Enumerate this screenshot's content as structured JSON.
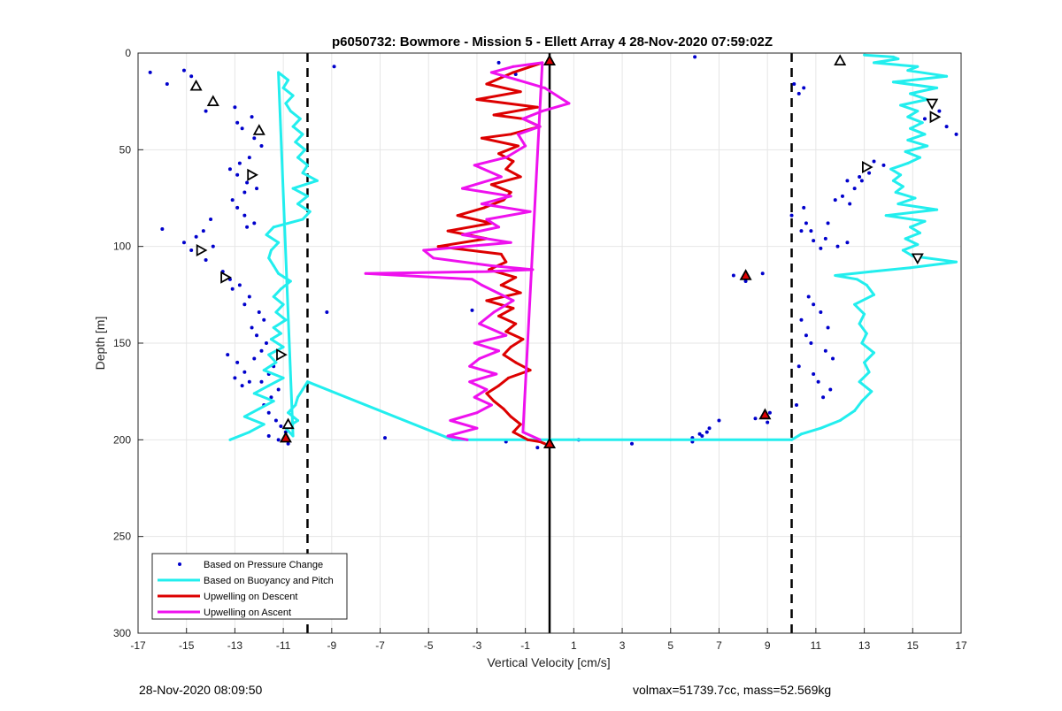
{
  "chart_data": {
    "type": "line",
    "title": "p6050732: Bowmore - Mission 5 - Ellett Array 4 28-Nov-2020 07:59:02Z",
    "xlabel": "Vertical Velocity [cm/s]",
    "ylabel": "Depth [m]",
    "xlim": [
      -17,
      17
    ],
    "ylim": [
      0,
      300
    ],
    "y_reversed": true,
    "xticks": [
      "-17",
      "-15",
      "-13",
      "-11",
      "-9",
      "-7",
      "-5",
      "-3",
      "-1",
      "1",
      "3",
      "5",
      "7",
      "9",
      "11",
      "13",
      "15",
      "17"
    ],
    "yticks": [
      "0",
      "50",
      "100",
      "150",
      "200",
      "250",
      "300"
    ],
    "grid": true,
    "legend_position": "bottom-left",
    "colors": {
      "pressure": "#0000cc",
      "buoyancy": "#22eeee",
      "descent": "#dd0000",
      "ascent": "#ee11ee",
      "reference": "#000000"
    },
    "reference_lines": [
      {
        "x": -10,
        "style": "dashed"
      },
      {
        "x": 0,
        "style": "solid"
      },
      {
        "x": 10,
        "style": "dashed"
      }
    ],
    "series": [
      {
        "name": "Based on Pressure Change",
        "style": "points",
        "x": [
          -16.5,
          -15.8,
          -15.1,
          -14.8,
          -14.2,
          -13.9,
          -13.0,
          -12.3,
          -12.9,
          -12.7,
          -12.2,
          -11.9,
          -12.4,
          -12.8,
          -13.2,
          -12.9,
          -12.5,
          -12.1,
          -12.6,
          -13.1,
          -12.9,
          -12.6,
          -12.2,
          -12.5,
          -14.0,
          -14.3,
          -14.6,
          -15.1,
          -14.8,
          -13.9,
          -14.2,
          -16.0,
          -13.5,
          -13.2,
          -12.8,
          -13.1,
          -12.4,
          -12.6,
          -12.0,
          -11.8,
          -12.3,
          -12.1,
          -11.7,
          -11.9,
          -12.2,
          -11.4,
          -11.6,
          -11.9,
          -11.2,
          -11.5,
          -12.4,
          -12.6,
          -12.9,
          -13.3,
          -13.0,
          -12.7,
          -11.8,
          -11.6,
          -11.3,
          -11.1,
          -10.9,
          -11.6,
          -11.2,
          -10.8,
          -9.2,
          -6.8,
          -1.8,
          -0.5,
          1.2,
          3.4,
          5.9,
          6.3,
          6.6,
          7.0,
          6.0,
          6.5,
          7.6,
          8.1,
          8.8,
          9.1,
          8.5,
          9.0,
          10.1,
          10.5,
          10.3,
          10.7,
          10.9,
          11.2,
          10.4,
          11.5,
          10.6,
          10.8,
          11.4,
          11.7,
          10.3,
          10.9,
          11.1,
          11.6,
          11.3,
          10.2,
          10.5,
          10.0,
          10.6,
          10.8,
          11.4,
          11.9,
          12.3,
          12.1,
          12.4,
          12.6,
          12.9,
          13.4,
          13.8,
          13.2,
          12.8,
          12.3,
          11.8,
          11.5,
          10.4,
          10.9,
          11.2,
          -3.2,
          -8.9,
          5.9,
          6.2,
          -2.1,
          -1.4,
          15.5,
          16.1,
          16.4,
          16.8,
          15.8
        ],
        "y": [
          10,
          16,
          9,
          12,
          30,
          25,
          28,
          33,
          36,
          39,
          44,
          48,
          54,
          57,
          60,
          63,
          67,
          70,
          72,
          76,
          80,
          84,
          88,
          90,
          86,
          92,
          95,
          98,
          102,
          100,
          107,
          91,
          113,
          117,
          120,
          122,
          126,
          130,
          134,
          138,
          142,
          146,
          150,
          154,
          158,
          162,
          166,
          170,
          174,
          178,
          170,
          165,
          160,
          156,
          168,
          172,
          182,
          186,
          190,
          193,
          196,
          198,
          200,
          202,
          134,
          199,
          201,
          204,
          200,
          202,
          201,
          198,
          194,
          190,
          2,
          196,
          115,
          118,
          114,
          186,
          189,
          191,
          16,
          18,
          21,
          126,
          130,
          134,
          138,
          142,
          146,
          150,
          154,
          158,
          162,
          166,
          170,
          174,
          178,
          182,
          80,
          84,
          88,
          92,
          96,
          100,
          98,
          74,
          78,
          70,
          66,
          56,
          58,
          62,
          64,
          66,
          76,
          88,
          92,
          97,
          101,
          133,
          7,
          199,
          197,
          5,
          11,
          34,
          30,
          38,
          42,
          26
        ]
      },
      {
        "name": "Based on Buoyancy and Pitch",
        "style": "line",
        "x": [
          -13.2,
          -12.4,
          -11.8,
          -12.6,
          -12.0,
          -11.4,
          -12.2,
          -11.6,
          -11.0,
          -11.8,
          -11.3,
          -11.6,
          -11.0,
          -11.5,
          -11.1,
          -11.4,
          -10.9,
          -11.3,
          -11.0,
          -11.4,
          -11.1,
          -10.7,
          -11.2,
          -11.4,
          -11.6,
          -11.5,
          -11.2,
          -11.7,
          -11.4,
          -10.2,
          -9.9,
          -10.4,
          -10.0,
          -10.6,
          -9.6,
          -10.2,
          -10.0,
          -10.4,
          -10.1,
          -10.5,
          -10.2,
          -10.6,
          -10.3,
          -10.7,
          -10.9,
          -10.6,
          -11.0,
          -10.8,
          -11.2,
          -10.6,
          -10.9,
          -10.4,
          -10.8,
          -10.5,
          -10.4,
          -10.2,
          -10.0,
          -4.0,
          0.0,
          5.0,
          10.0,
          10.4,
          11.2,
          12.0,
          12.6,
          12.9,
          13.3,
          12.8,
          13.2,
          13.0,
          13.4,
          12.9,
          13.1,
          12.8,
          13.0,
          12.6,
          13.4,
          13.1,
          12.7,
          11.8,
          13.3,
          14.9,
          16.8,
          15.0,
          14.6,
          15.2,
          14.7,
          15.3,
          14.9,
          15.5,
          13.9,
          16.0,
          14.4,
          15.1,
          14.3,
          14.6,
          14.2,
          14.5,
          14.1,
          14.8,
          15.3,
          14.7,
          15.6,
          14.8,
          15.5,
          14.9,
          15.4,
          14.8,
          15.2,
          14.5,
          15.6,
          14.9,
          16.0,
          14.2,
          16.4,
          14.8,
          15.2,
          13.4,
          14.4,
          14.2,
          13.0
        ],
        "y": [
          200,
          196,
          192,
          188,
          184,
          180,
          176,
          172,
          168,
          164,
          160,
          156,
          152,
          148,
          145,
          142,
          138,
          134,
          130,
          126,
          122,
          118,
          114,
          110,
          106,
          102,
          98,
          94,
          90,
          86,
          82,
          78,
          74,
          70,
          66,
          62,
          58,
          54,
          50,
          46,
          42,
          38,
          34,
          30,
          26,
          22,
          18,
          14,
          10,
          198,
          194,
          190,
          186,
          182,
          178,
          174,
          170,
          200,
          200,
          200,
          200,
          197,
          194,
          190,
          185,
          180,
          175,
          170,
          165,
          160,
          155,
          150,
          145,
          140,
          135,
          130,
          125,
          120,
          117,
          115,
          113,
          111,
          108,
          105,
          102,
          99,
          96,
          93,
          90,
          87,
          84,
          81,
          78,
          75,
          72,
          69,
          66,
          63,
          60,
          57,
          54,
          51,
          48,
          45,
          42,
          39,
          36,
          33,
          30,
          27,
          24,
          21,
          18,
          15,
          12,
          9,
          7,
          5,
          3,
          2,
          1
        ]
      },
      {
        "name": "Upwelling on Descent",
        "style": "line",
        "x": [
          -0.3,
          -1.5,
          -2.6,
          -1.2,
          -3.0,
          -0.5,
          -2.3,
          -1.1,
          -0.4,
          -1.6,
          -2.8,
          -1.3,
          -2.1,
          -1.5,
          -1.8,
          -1.2,
          -2.4,
          -1.6,
          -1.9,
          -2.7,
          -3.8,
          -2.4,
          -4.2,
          -2.6,
          -4.6,
          -2.0,
          -1.8,
          -2.5,
          -1.4,
          -2.0,
          -1.2,
          -2.6,
          -1.5,
          -2.1,
          -1.4,
          -1.8,
          -1.1,
          -1.6,
          -1.9,
          -1.4,
          -0.8,
          -1.7,
          -2.1,
          -2.6,
          -2.3,
          -1.9,
          -1.6,
          -1.2,
          -1.5,
          -0.9,
          -0.4,
          -0.2
        ],
        "y": [
          5,
          10,
          16,
          20,
          24,
          28,
          32,
          34,
          38,
          42,
          44,
          48,
          52,
          56,
          60,
          64,
          68,
          72,
          76,
          80,
          84,
          88,
          92,
          96,
          100,
          104,
          108,
          112,
          116,
          120,
          124,
          128,
          132,
          136,
          140,
          144,
          148,
          152,
          156,
          160,
          164,
          168,
          172,
          176,
          180,
          184,
          188,
          192,
          196,
          200,
          201,
          202
        ]
      },
      {
        "name": "Upwelling on Ascent",
        "style": "line",
        "x": [
          -0.4,
          -1.1,
          -0.3,
          -1.5,
          -2.4,
          -1.3,
          -0.2,
          0.8,
          -0.3,
          -1.1,
          -0.4,
          -1.3,
          -1.0,
          -1.8,
          -3.1,
          -2.0,
          -3.6,
          -1.6,
          -2.8,
          -0.8,
          -2.6,
          -2.1,
          -3.6,
          -1.6,
          -5.2,
          -4.8,
          -2.4,
          -0.7,
          -2.6,
          -7.6,
          -3.2,
          -2.8,
          -1.5,
          -2.3,
          -2.9,
          -1.8,
          -3.1,
          -2.1,
          -2.9,
          -3.3,
          -2.2,
          -3.3,
          -2.6,
          -3.1,
          -2.4,
          -3.0,
          -4.1,
          -3.0,
          -4.2,
          -3.4
        ],
        "y": [
          200,
          196,
          5,
          7,
          10,
          14,
          18,
          26,
          30,
          34,
          38,
          42,
          48,
          54,
          58,
          64,
          70,
          74,
          78,
          82,
          86,
          90,
          94,
          98,
          102,
          106,
          110,
          112,
          113,
          114,
          117,
          120,
          128,
          134,
          140,
          146,
          150,
          154,
          158,
          162,
          166,
          170,
          174,
          178,
          182,
          186,
          190,
          194,
          198,
          200
        ]
      }
    ],
    "markers": [
      {
        "x": -14.6,
        "y": 17,
        "shape": "triangle-up",
        "fill": "none"
      },
      {
        "x": -13.9,
        "y": 25,
        "shape": "triangle-up",
        "fill": "none"
      },
      {
        "x": -12.0,
        "y": 40,
        "shape": "triangle-up",
        "fill": "none"
      },
      {
        "x": -12.3,
        "y": 63,
        "shape": "triangle-right",
        "fill": "none"
      },
      {
        "x": -14.4,
        "y": 102,
        "shape": "triangle-right",
        "fill": "none"
      },
      {
        "x": -13.4,
        "y": 116,
        "shape": "triangle-right",
        "fill": "none"
      },
      {
        "x": -11.1,
        "y": 156,
        "shape": "triangle-right",
        "fill": "none"
      },
      {
        "x": -10.8,
        "y": 192,
        "shape": "triangle-up",
        "fill": "none"
      },
      {
        "x": -10.9,
        "y": 199,
        "shape": "triangle-up",
        "fill": "red"
      },
      {
        "x": 0.0,
        "y": 4,
        "shape": "triangle-up",
        "fill": "red"
      },
      {
        "x": 0.0,
        "y": 202,
        "shape": "triangle-up",
        "fill": "red"
      },
      {
        "x": 8.1,
        "y": 115,
        "shape": "triangle-up",
        "fill": "red"
      },
      {
        "x": 8.9,
        "y": 187,
        "shape": "triangle-up",
        "fill": "red"
      },
      {
        "x": 12.0,
        "y": 4,
        "shape": "triangle-up",
        "fill": "none"
      },
      {
        "x": 15.8,
        "y": 26,
        "shape": "triangle-down",
        "fill": "none"
      },
      {
        "x": 15.9,
        "y": 33,
        "shape": "triangle-right",
        "fill": "none"
      },
      {
        "x": 13.1,
        "y": 59,
        "shape": "triangle-right",
        "fill": "none"
      },
      {
        "x": 15.2,
        "y": 106,
        "shape": "triangle-down",
        "fill": "none"
      }
    ]
  },
  "footer": {
    "timestamp": "28-Nov-2020 08:09:50",
    "summary": "volmax=51739.7cc, mass=52.569kg"
  }
}
